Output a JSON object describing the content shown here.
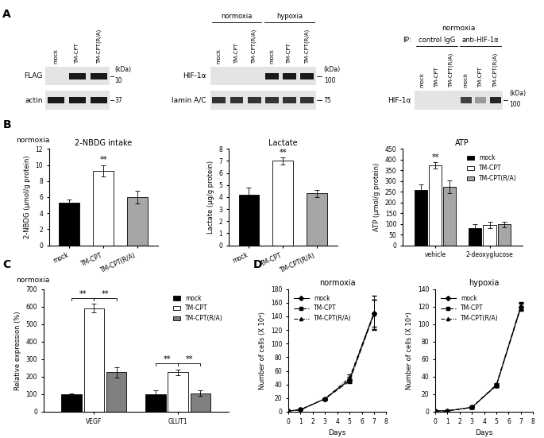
{
  "blots": [
    {
      "panel": "A",
      "lanes": [
        "mock",
        "TM-CPT",
        "TM-CPT(R/A)"
      ],
      "unit": "(kDa)",
      "rows": [
        {
          "label": "FLAG",
          "marker": 10,
          "bands": [
            0,
            0.9,
            0.9
          ]
        },
        {
          "label": "actin",
          "marker": 37,
          "bands": [
            0.9,
            0.9,
            0.9
          ]
        }
      ]
    },
    {
      "lanes": [
        "mock",
        "TM-CPT",
        "TM-CPT(R/A)",
        "mock",
        "TM-CPT",
        "TM-CPT(R/A)"
      ],
      "unit": "(kDa)",
      "groups": [
        {
          "label": "normoxia",
          "lanes": [
            0,
            1,
            2
          ]
        },
        {
          "label": "hypoxia",
          "lanes": [
            3,
            4,
            5
          ]
        }
      ],
      "rows": [
        {
          "label": "HIF-1α",
          "marker": 100,
          "bands": [
            0,
            0,
            0,
            0.9,
            0.9,
            0.9
          ]
        },
        {
          "label": "lamin A/C",
          "marker": 75,
          "bands": [
            0.8,
            0.8,
            0.8,
            0.8,
            0.8,
            0.8
          ]
        }
      ]
    },
    {
      "heading": "normoxia",
      "groups_prefix": "IP:",
      "lanes": [
        "mock",
        "TM-CPT",
        "TM-CPT(R/A)",
        "mock",
        "TM-CPT",
        "TM-CPT(R/A)"
      ],
      "unit": "(kDa)",
      "groups": [
        {
          "label": "control IgG",
          "lanes": [
            0,
            1,
            2
          ]
        },
        {
          "label": "anti-HIF-1α",
          "lanes": [
            3,
            4,
            5
          ]
        }
      ],
      "rows": [
        {
          "label": "HIF-1α",
          "marker": 100,
          "bands": [
            0,
            0,
            0,
            0.75,
            0.4,
            0.85
          ]
        }
      ]
    }
  ],
  "chart_data": [
    {
      "type": "bar",
      "panel": "B",
      "heading": "normoxia",
      "title": "2-NBDG intake",
      "y_label": "2-NBDG (μmol/g protein)",
      "categories": [
        "mock",
        "TM-CPT",
        "TM-CPT(R/A)"
      ],
      "values": [
        5.3,
        9.3,
        6.0
      ],
      "errors": [
        0.4,
        0.7,
        0.8
      ],
      "colors": [
        "#000000",
        "#ffffff",
        "#a6a6a6"
      ],
      "ylim": [
        0,
        12
      ],
      "yticks": [
        0,
        2,
        4,
        6,
        8,
        10,
        12
      ],
      "significance": [
        {
          "category": "TM-CPT",
          "text": "**"
        }
      ]
    },
    {
      "type": "bar",
      "title": "Lactate",
      "y_label": "Lactate (μg/g protein)",
      "categories": [
        "mock",
        "TM-CPT",
        "TM-CPT(R/A)"
      ],
      "values": [
        4.2,
        7.0,
        4.3
      ],
      "errors": [
        0.6,
        0.3,
        0.3
      ],
      "colors": [
        "#000000",
        "#ffffff",
        "#a6a6a6"
      ],
      "ylim": [
        0,
        8
      ],
      "yticks": [
        0,
        1,
        2,
        3,
        4,
        5,
        6,
        7,
        8
      ],
      "significance": [
        {
          "category": "TM-CPT",
          "text": "**"
        }
      ]
    },
    {
      "type": "bar",
      "title": "ATP",
      "y_label": "ATP (μmol/g protein)",
      "categories": [
        "vehicle",
        "2-deoxyglucose"
      ],
      "series": [
        {
          "name": "mock",
          "color": "#000000",
          "values": [
            260,
            80
          ],
          "errors": [
            25,
            20
          ]
        },
        {
          "name": "TM-CPT",
          "color": "#ffffff",
          "values": [
            372,
            95
          ],
          "errors": [
            15,
            15
          ]
        },
        {
          "name": "TM-CPT(R/A)",
          "color": "#a6a6a6",
          "values": [
            272,
            97
          ],
          "errors": [
            30,
            12
          ]
        }
      ],
      "ylim": [
        0,
        450
      ],
      "yticks": [
        0,
        50,
        100,
        150,
        200,
        250,
        300,
        350,
        400,
        450
      ],
      "legend": "upper right",
      "significance": [
        {
          "category": "vehicle",
          "series": "TM-CPT",
          "text": "**"
        }
      ]
    },
    {
      "type": "bar",
      "panel": "C",
      "heading": "normoxia",
      "y_label": "Relative expression (%)",
      "categories": [
        "VEGF",
        "GLUT1"
      ],
      "series": [
        {
          "name": "mock",
          "color": "#000000",
          "values": [
            100,
            100
          ],
          "errors": [
            5,
            20
          ]
        },
        {
          "name": "TM-CPT",
          "color": "#ffffff",
          "values": [
            590,
            225
          ],
          "errors": [
            25,
            15
          ]
        },
        {
          "name": "TM-CPT(R/A)",
          "color": "#808080",
          "values": [
            225,
            105
          ],
          "errors": [
            30,
            15
          ]
        }
      ],
      "ylim": [
        0,
        700
      ],
      "yticks": [
        0,
        100,
        200,
        300,
        400,
        500,
        600,
        700
      ],
      "legend": "upper right",
      "brackets": [
        {
          "category": "VEGF",
          "from": "mock",
          "to": "TM-CPT",
          "text": "**"
        },
        {
          "category": "VEGF",
          "from": "TM-CPT",
          "to": "TM-CPT(R/A)",
          "text": "**"
        },
        {
          "category": "GLUT1",
          "from": "mock",
          "to": "TM-CPT",
          "text": "**"
        },
        {
          "category": "GLUT1",
          "from": "TM-CPT",
          "to": "TM-CPT(R/A)",
          "text": "**"
        }
      ]
    },
    {
      "type": "line",
      "panel": "D",
      "title": "normoxia",
      "x_label": "Days",
      "y_label": "Number of cells (X 10⁴)",
      "x": [
        0,
        1,
        3,
        5,
        7
      ],
      "series": [
        {
          "name": "mock",
          "color": "#000000",
          "marker": "diamond",
          "line_style": "solid",
          "values": [
            1,
            3,
            19,
            47,
            145
          ],
          "errors": [
            0,
            0,
            1,
            4,
            25
          ]
        },
        {
          "name": "TM-CPT",
          "color": "#000000",
          "marker": "square",
          "line_style": "dashed",
          "values": [
            1,
            3,
            19,
            45,
            143
          ],
          "errors": [
            0,
            0,
            1,
            3,
            22
          ]
        },
        {
          "name": "TM-CPT(R/A)",
          "color": "#000000",
          "marker": "triangle",
          "line_style": "dashdot",
          "values": [
            1,
            3,
            19,
            50,
            145
          ],
          "errors": [
            0,
            0,
            1,
            5,
            20
          ]
        }
      ],
      "xlim": [
        0,
        8
      ],
      "xticks": [
        0,
        1,
        2,
        3,
        4,
        5,
        6,
        7,
        8
      ],
      "ylim": [
        0,
        180
      ],
      "yticks": [
        0,
        20,
        40,
        60,
        80,
        100,
        120,
        140,
        160,
        180
      ],
      "legend": "upper left"
    },
    {
      "type": "line",
      "title": "hypoxia",
      "x_label": "Days",
      "y_label": "Number of cells (X 10⁴)",
      "x": [
        0,
        1,
        3,
        5,
        7
      ],
      "series": [
        {
          "name": "mock",
          "color": "#000000",
          "marker": "diamond",
          "line_style": "solid",
          "values": [
            1,
            1,
            5,
            30,
            120
          ],
          "errors": [
            0,
            0,
            1,
            2,
            4
          ]
        },
        {
          "name": "TM-CPT",
          "color": "#000000",
          "marker": "square",
          "line_style": "dashed",
          "values": [
            1,
            1,
            5,
            30,
            119
          ],
          "errors": [
            0,
            0,
            1,
            2,
            4
          ]
        },
        {
          "name": "TM-CPT(R/A)",
          "color": "#000000",
          "marker": "triangle",
          "line_style": "dashdot",
          "values": [
            1,
            1,
            5,
            31,
            121
          ],
          "errors": [
            0,
            0,
            1,
            2,
            4
          ]
        }
      ],
      "xlim": [
        0,
        8
      ],
      "xticks": [
        0,
        1,
        2,
        3,
        4,
        5,
        6,
        7,
        8
      ],
      "ylim": [
        0,
        140
      ],
      "yticks": [
        0,
        20,
        40,
        60,
        80,
        100,
        120,
        140
      ],
      "legend": "upper left"
    }
  ]
}
